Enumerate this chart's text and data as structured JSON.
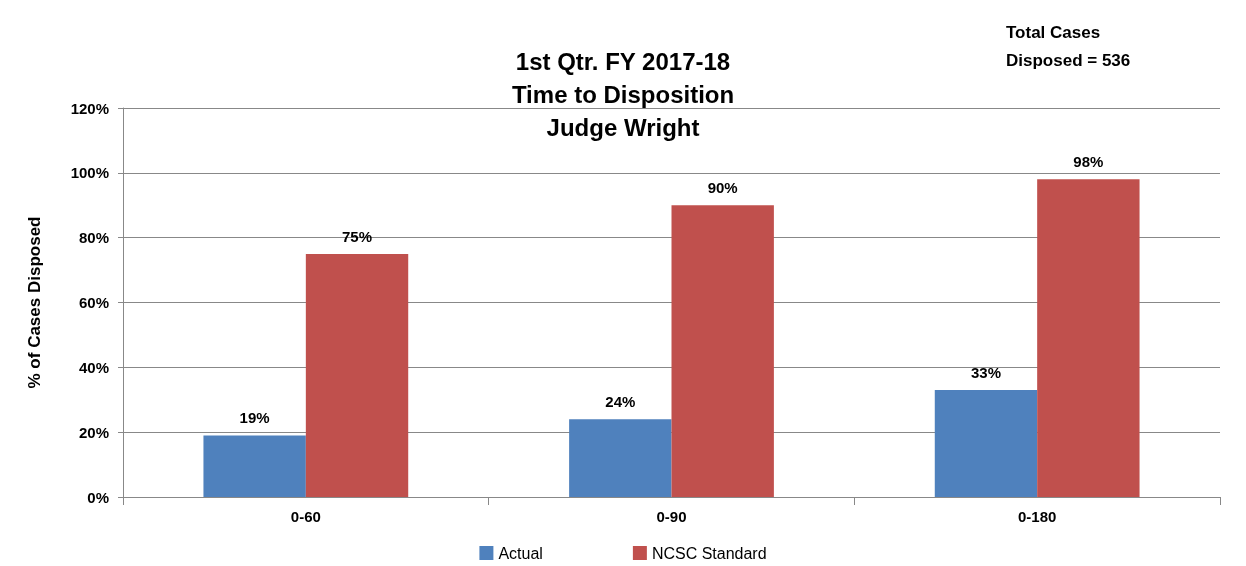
{
  "chart_data": {
    "type": "bar",
    "title": "1st Qtr. FY 2017-18\nTime to Disposition\nJudge Wright",
    "ylabel": "% of Cases Disposed",
    "annotations": [
      "Total Cases Disposed = 536"
    ],
    "categories": [
      "0-60",
      "0-90",
      "0-180"
    ],
    "series": [
      {
        "name": "Actual",
        "color": "#4f81bd",
        "values": [
          19,
          24,
          33
        ],
        "value_labels": [
          "19%",
          "24%",
          "33%"
        ]
      },
      {
        "name": "NCSC Standard",
        "color": "#c0504d",
        "values": [
          75,
          90,
          98
        ],
        "value_labels": [
          "75%",
          "90%",
          "98%"
        ]
      }
    ],
    "ylim": [
      0,
      120
    ],
    "yticks": [
      {
        "value": 0,
        "label": "0%"
      },
      {
        "value": 20,
        "label": "20%"
      },
      {
        "value": 40,
        "label": "40%"
      },
      {
        "value": 60,
        "label": "60%"
      },
      {
        "value": 80,
        "label": "80%"
      },
      {
        "value": 100,
        "label": "100%"
      },
      {
        "value": 120,
        "label": "120%"
      }
    ],
    "grid": "y",
    "legend": "bottom"
  }
}
